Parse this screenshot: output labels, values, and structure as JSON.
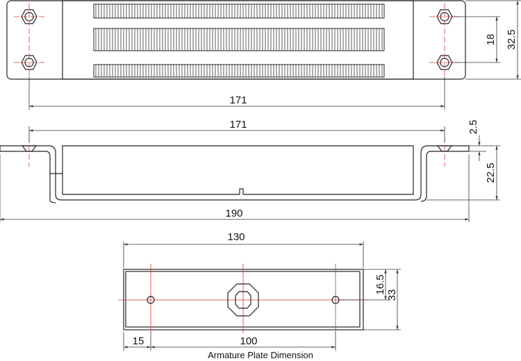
{
  "top_view": {
    "length": "171",
    "hole_spacing": "18",
    "width": "32.5"
  },
  "side_view": {
    "hole_spacing": "171",
    "thickness": "2.5",
    "height": "22.5",
    "overall_length": "190"
  },
  "armature_plate": {
    "length": "130",
    "hole_offset": "16.5",
    "width": "33",
    "edge_offset": "15",
    "hole_spacing": "100",
    "caption": "Armature Plate Dimension"
  }
}
